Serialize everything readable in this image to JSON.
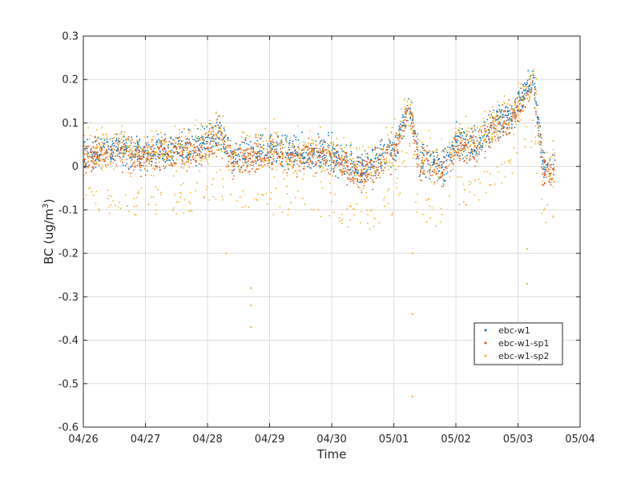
{
  "chart_data": {
    "type": "scatter",
    "xlabel": "Time",
    "ylabel": "BC (ug/m³)",
    "ylabel_base": "BC (ug/m",
    "ylabel_sup": "3",
    "ylabel_tail": ")",
    "xlim": [
      "04/26",
      "05/04"
    ],
    "ylim": [
      -0.6,
      0.3
    ],
    "x_ticks": [
      "04/26",
      "04/27",
      "04/28",
      "04/29",
      "04/30",
      "05/01",
      "05/02",
      "05/03",
      "05/04"
    ],
    "y_ticks": [
      "0.3",
      "0.2",
      "0.1",
      "0",
      "-0.1",
      "-0.2",
      "-0.3",
      "-0.4",
      "-0.5",
      "-0.6"
    ],
    "y_tick_values": [
      0.3,
      0.2,
      0.1,
      0,
      -0.1,
      -0.2,
      -0.3,
      -0.4,
      -0.5,
      -0.6
    ],
    "grid": true,
    "legend_position": "lower-right",
    "series": [
      {
        "name": "ebc-w1",
        "color": "#0072BD"
      },
      {
        "name": "ebc-w1-sp1",
        "color": "#D95319"
      },
      {
        "name": "ebc-w1-sp2",
        "color": "#EDB120"
      }
    ],
    "baseline_profile": {
      "note_days_are_from_04/26": true,
      "x_days": [
        0.0,
        0.5,
        1.0,
        1.5,
        2.0,
        2.2,
        2.4,
        2.7,
        3.0,
        3.5,
        4.0,
        4.5,
        5.0,
        5.25,
        5.4,
        5.8,
        6.0,
        6.3,
        6.6,
        6.9,
        7.1,
        7.25,
        7.4,
        7.6
      ],
      "y": [
        0.03,
        0.04,
        0.03,
        0.04,
        0.05,
        0.08,
        0.02,
        0.03,
        0.04,
        0.03,
        0.03,
        -0.01,
        0.04,
        0.14,
        0.02,
        0.0,
        0.06,
        0.05,
        0.1,
        0.12,
        0.17,
        0.2,
        0.0,
        0.0
      ]
    },
    "notable_points": [
      {
        "series": "ebc-w1-sp2",
        "x_day": 2.7,
        "y": -0.37
      },
      {
        "series": "ebc-w1-sp2",
        "x_day": 2.7,
        "y": -0.32
      },
      {
        "series": "ebc-w1-sp2",
        "x_day": 2.7,
        "y": -0.28
      },
      {
        "series": "ebc-w1-sp2",
        "x_day": 5.3,
        "y": -0.53
      },
      {
        "series": "ebc-w1-sp2",
        "x_day": 5.3,
        "y": -0.34
      },
      {
        "series": "ebc-w1-sp2",
        "x_day": 5.3,
        "y": -0.2
      },
      {
        "series": "ebc-w1-sp2",
        "x_day": 7.15,
        "y": -0.27
      },
      {
        "series": "ebc-w1-sp2",
        "x_day": 7.15,
        "y": -0.19
      },
      {
        "series": "ebc-w1-sp2",
        "x_day": 2.3,
        "y": -0.2
      }
    ]
  }
}
